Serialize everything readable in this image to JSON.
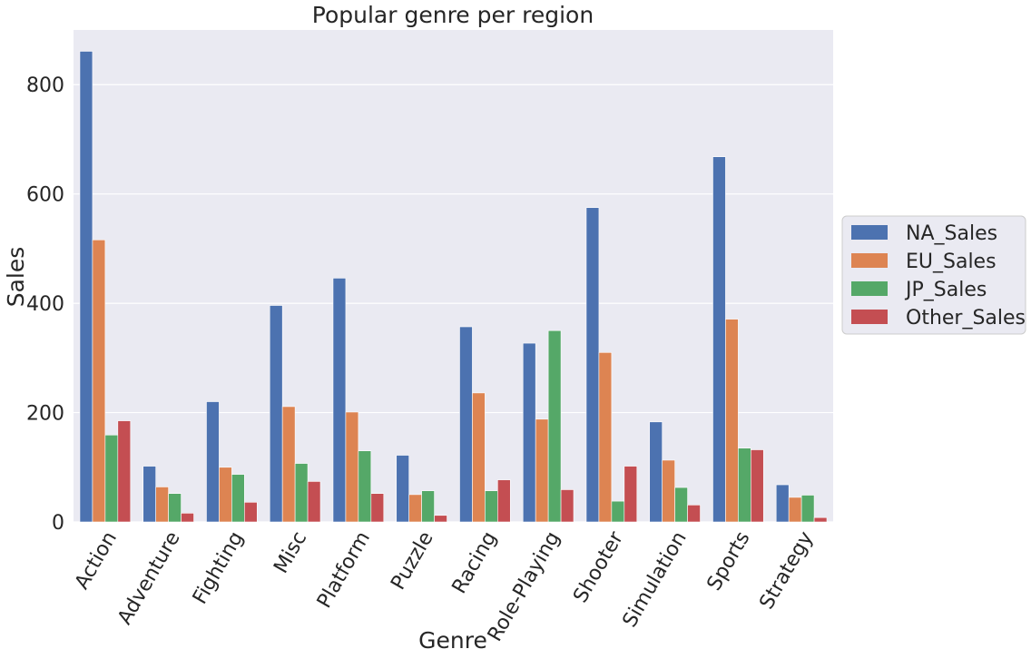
{
  "chart_data": {
    "type": "bar",
    "title": "Popular genre per region",
    "xlabel": "Genre",
    "ylabel": "Sales",
    "ylim": [
      0,
      900
    ],
    "yticks": [
      0,
      200,
      400,
      600,
      800
    ],
    "grid": true,
    "legend_placement": "center-right outside",
    "categories": [
      "Action",
      "Adventure",
      "Fighting",
      "Misc",
      "Platform",
      "Puzzle",
      "Racing",
      "Role-Playing",
      "Shooter",
      "Simulation",
      "Sports",
      "Strategy"
    ],
    "series": [
      {
        "name": "NA_Sales",
        "color": "#4c72b0",
        "values": [
          861,
          102,
          220,
          396,
          446,
          122,
          357,
          327,
          575,
          183,
          668,
          68
        ]
      },
      {
        "name": "EU_Sales",
        "color": "#dd8452",
        "values": [
          516,
          64,
          100,
          211,
          201,
          50,
          236,
          188,
          310,
          113,
          371,
          45
        ]
      },
      {
        "name": "JP_Sales",
        "color": "#55a868",
        "values": [
          159,
          52,
          87,
          107,
          130,
          57,
          57,
          350,
          38,
          63,
          135,
          49
        ]
      },
      {
        "name": "Other_Sales",
        "color": "#c44e52",
        "values": [
          185,
          16,
          36,
          74,
          52,
          12,
          77,
          59,
          102,
          31,
          132,
          8
        ]
      }
    ]
  }
}
